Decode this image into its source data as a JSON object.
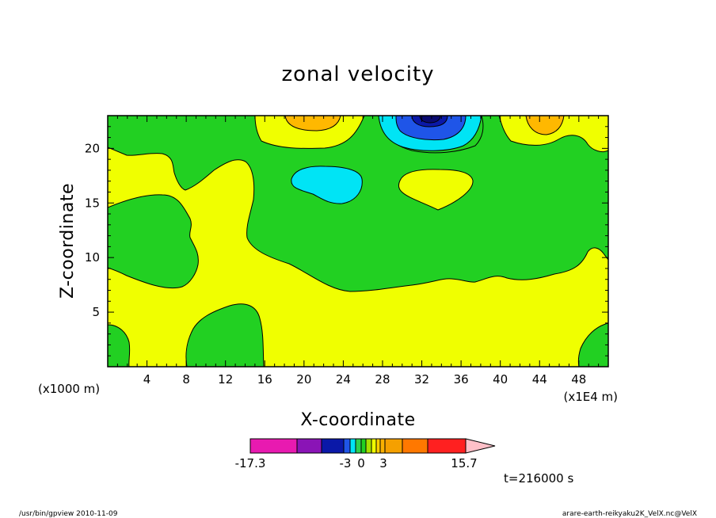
{
  "chart_data": {
    "type": "heatmap",
    "title": "zonal velocity",
    "xlabel": "X-coordinate",
    "ylabel": "Z-coordinate",
    "x_unit_left": "(x1000 m)",
    "x_unit_right": "(x1E4 m)",
    "xlim": [
      0,
      51
    ],
    "ylim": [
      0,
      23
    ],
    "x_ticks": [
      4,
      8,
      12,
      16,
      20,
      24,
      28,
      32,
      36,
      40,
      44,
      48
    ],
    "y_ticks": [
      5,
      10,
      15,
      20
    ],
    "colorbar": {
      "min": -17.3,
      "max": 15.7,
      "labels": [
        {
          "text": "-17.3",
          "value": -17.3
        },
        {
          "text": "-3",
          "value": -3
        },
        {
          "text": "0",
          "value": 0
        },
        {
          "text": "3",
          "value": 3
        },
        {
          "text": "15.7",
          "value": 15.7
        }
      ],
      "bands": [
        {
          "from": -17.3,
          "to": -12,
          "color": "#e81ab0"
        },
        {
          "from": -12,
          "to": -9,
          "color": "#8a14b6"
        },
        {
          "from": -9,
          "to": -6,
          "color": "#0a18a8"
        },
        {
          "from": -6,
          "to": -5,
          "color": "#1f55e8"
        },
        {
          "from": -5,
          "to": -4,
          "color": "#00e4f5"
        },
        {
          "from": -4,
          "to": -3,
          "color": "#2ed04e"
        },
        {
          "from": -3,
          "to": -2,
          "color": "#22d022"
        },
        {
          "from": -2,
          "to": -1,
          "color": "#a6e000"
        },
        {
          "from": -1,
          "to": 0,
          "color": "#f0ff00"
        },
        {
          "from": 0,
          "to": 1,
          "color": "#ffd000"
        },
        {
          "from": 1,
          "to": 2,
          "color": "#f9b000"
        },
        {
          "from": 2,
          "to": 3,
          "color": "#f5a000"
        },
        {
          "from": 3,
          "to": 6,
          "color": "#ff7800"
        },
        {
          "from": 6,
          "to": 9,
          "color": "#ff2020"
        },
        {
          "from": 9,
          "to": 15.7,
          "color": "#ff8080"
        }
      ],
      "extend_color": "#ffc0c8"
    },
    "contour_colors": {
      "background": "#f0ff00",
      "green": "#22d022",
      "cyan": "#00e4f5",
      "orange": "#ffb800",
      "blue": "#1f55e8",
      "darkblue": "#0a18a8",
      "navy": "#0a0a70"
    },
    "annotation": "t=216000 s",
    "footer_left": "/usr/bin/gpview   2010-11-09",
    "footer_right": "arare-earth-reikyaku2K_VelX.nc@VelX"
  }
}
